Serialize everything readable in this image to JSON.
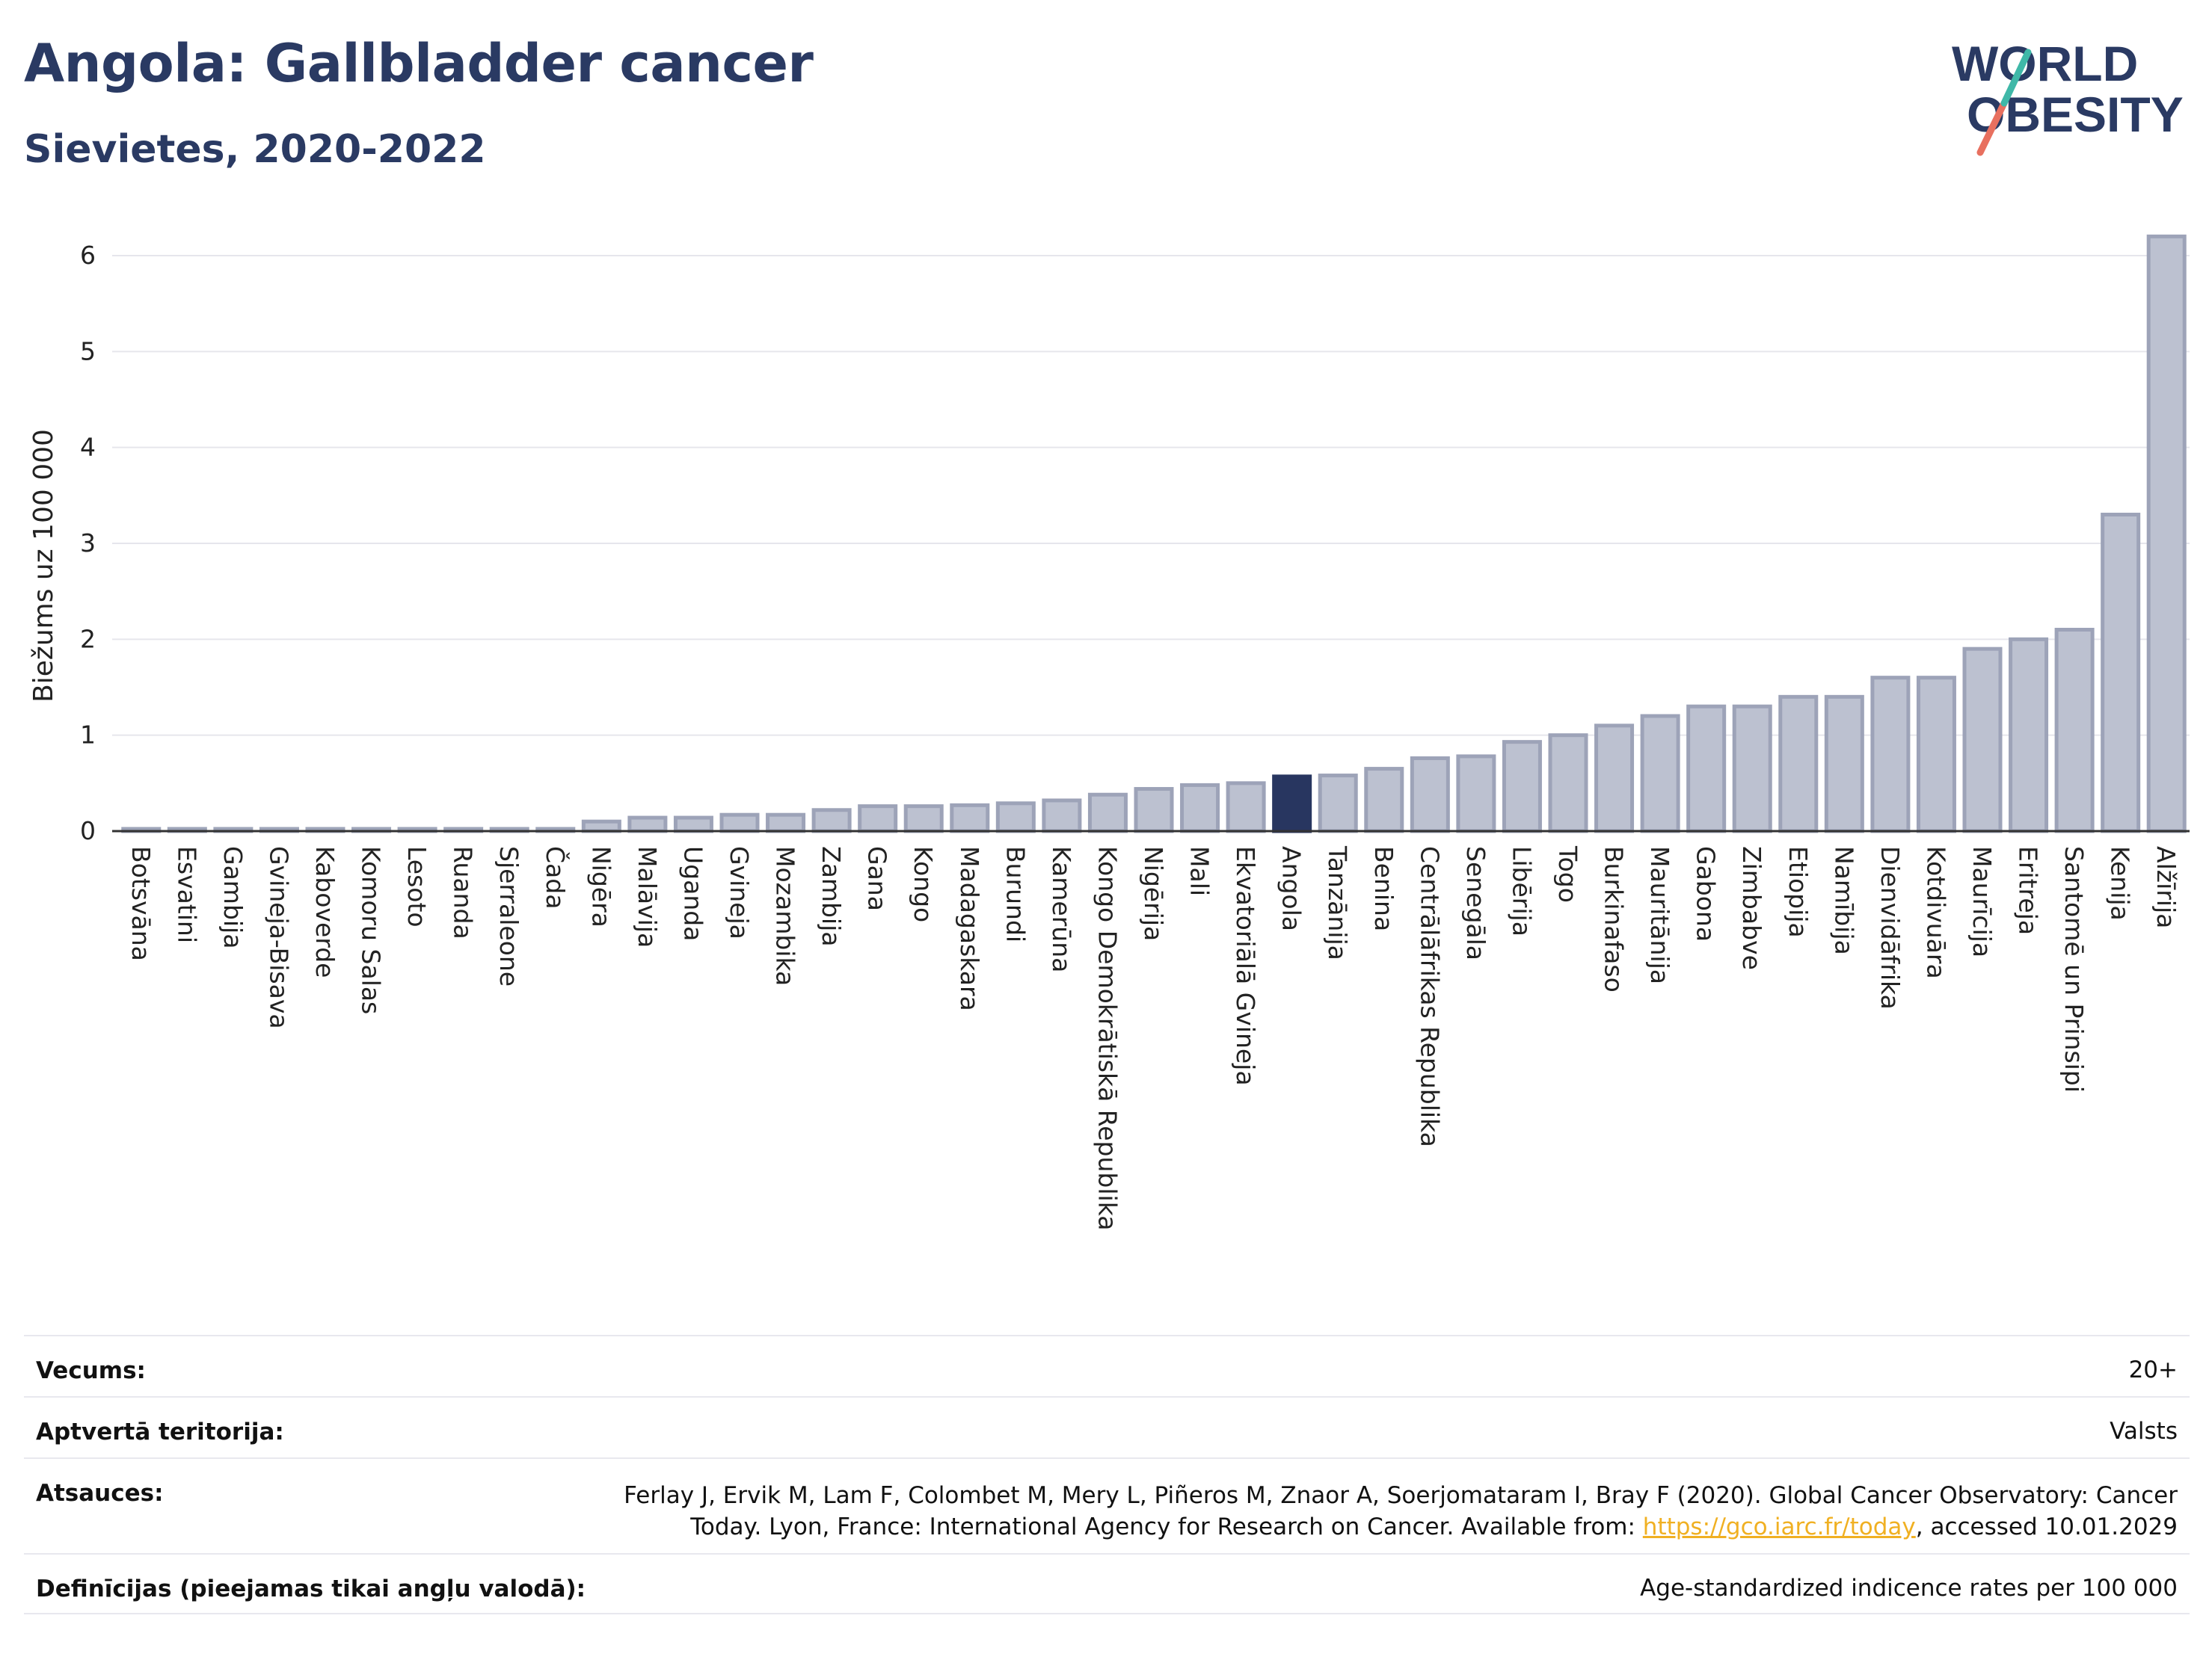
{
  "header": {
    "title": "Angola: Gallbladder cancer",
    "subtitle": "Sievietes, 2020-2022"
  },
  "logo": {
    "line1": "WORLD",
    "line2": "OBESITY"
  },
  "chart_data": {
    "type": "bar",
    "ylabel": "Biežums uz 100 000",
    "xlabel": "",
    "ylim": [
      0,
      6.3
    ],
    "yticks": [
      0,
      1,
      2,
      3,
      4,
      5,
      6
    ],
    "grid": true,
    "highlight": "Angola",
    "colors": {
      "bar": "#bcc1d0",
      "bar_edge": "#9da3b8",
      "highlight": "#283660",
      "grid": "#e6e6ec",
      "axis": "#333333"
    },
    "categories": [
      "Botsvāna",
      "Esvatini",
      "Gambija",
      "Gvineja-Bisava",
      "Kaboverde",
      "Komoru Salas",
      "Lesoto",
      "Ruanda",
      "Sjerraleone",
      "Čada",
      "Nigēra",
      "Malāvija",
      "Uganda",
      "Gvineja",
      "Mozambika",
      "Zambija",
      "Gana",
      "Kongo",
      "Madagaskara",
      "Burundi",
      "Kamerūna",
      "Kongo Demokrātiskā Republika",
      "Nigērija",
      "Mali",
      "Ekvatoriālā Gvineja",
      "Angola",
      "Tanzānija",
      "Benina",
      "Centrālāfrikas Republika",
      "Senegāla",
      "Libērija",
      "Togo",
      "Burkinafaso",
      "Mauritānija",
      "Gabona",
      "Zimbabve",
      "Etiopija",
      "Namībija",
      "Dienvidāfrika",
      "Kotdivuāra",
      "Maurīcija",
      "Eritreja",
      "Santomē un Prinsipi",
      "Kenija",
      "Alžīrija"
    ],
    "values": [
      0.02,
      0.02,
      0.02,
      0.02,
      0.02,
      0.02,
      0.02,
      0.02,
      0.02,
      0.02,
      0.1,
      0.14,
      0.14,
      0.17,
      0.17,
      0.22,
      0.26,
      0.26,
      0.27,
      0.29,
      0.32,
      0.38,
      0.44,
      0.48,
      0.5,
      0.57,
      0.58,
      0.65,
      0.76,
      0.78,
      0.93,
      1.0,
      1.1,
      1.2,
      1.3,
      1.3,
      1.4,
      1.4,
      1.6,
      1.6,
      1.9,
      2.0,
      2.1,
      3.3,
      6.2
    ]
  },
  "footer": {
    "rows": [
      {
        "label": "Vecums:",
        "value": "20+"
      },
      {
        "label": "Aptvertā teritorija:",
        "value": "Valsts"
      },
      {
        "label": "Atsauces:",
        "value_pre": "Ferlay J, Ervik M, Lam F, Colombet M, Mery L, Piñeros M, Znaor A, Soerjomataram I, Bray F (2020). Global Cancer Observatory: Cancer Today. Lyon, France: International Agency for Research on Cancer. Available from: ",
        "link": "https://gco.iarc.fr/today",
        "value_post": ", accessed 10.01.2029"
      },
      {
        "label": "Definīcijas (pieejamas tikai angļu valodā):",
        "value": "Age-standardized indicence rates per 100 000"
      }
    ]
  }
}
